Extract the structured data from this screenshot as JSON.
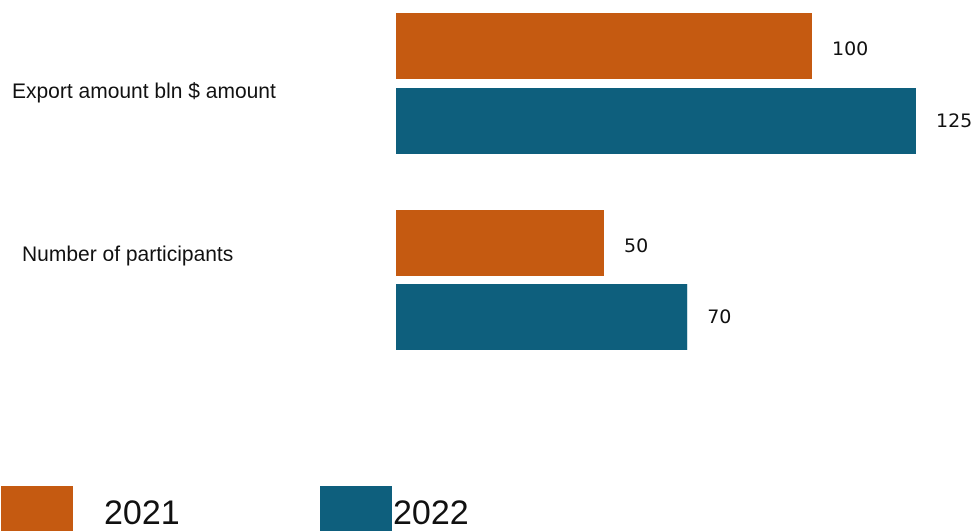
{
  "chart_data": {
    "type": "bar",
    "orientation": "horizontal",
    "categories": [
      "Export amount bln $ amount",
      "Number of participants"
    ],
    "series": [
      {
        "name": "2021",
        "color": "#c55a11",
        "values": [
          100,
          50
        ]
      },
      {
        "name": "2022",
        "color": "#0e5f7d",
        "values": [
          125,
          70
        ]
      }
    ],
    "title": "",
    "xlabel": "",
    "ylabel": "",
    "xlim": [
      0,
      125
    ],
    "grid": false,
    "legend_position": "bottom"
  }
}
